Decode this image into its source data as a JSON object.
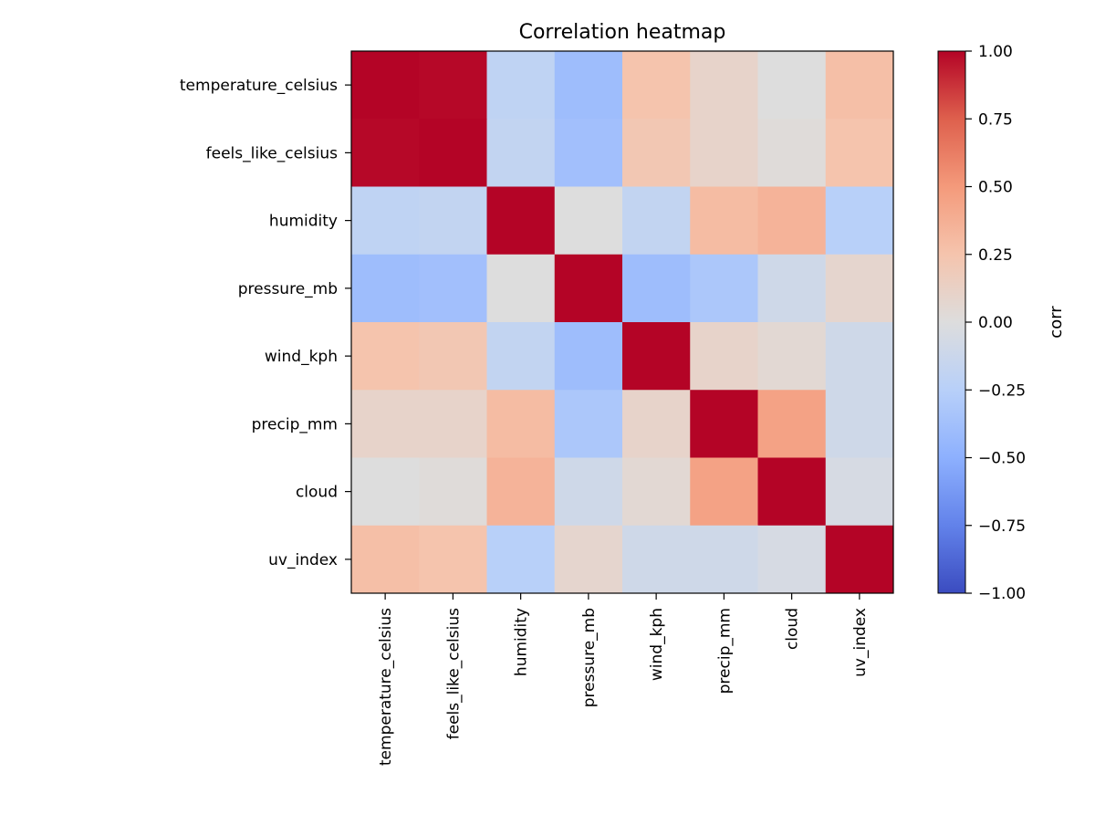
{
  "chart_data": {
    "type": "heatmap",
    "title": "Correlation heatmap",
    "xlabel": "",
    "ylabel": "",
    "x_categories": [
      "temperature_celsius",
      "feels_like_celsius",
      "humidity",
      "pressure_mb",
      "wind_kph",
      "precip_mm",
      "cloud",
      "uv_index"
    ],
    "y_categories": [
      "temperature_celsius",
      "feels_like_celsius",
      "humidity",
      "pressure_mb",
      "wind_kph",
      "precip_mm",
      "cloud",
      "uv_index"
    ],
    "values": [
      [
        1.0,
        0.99,
        -0.2,
        -0.4,
        0.25,
        0.1,
        0.0,
        0.28
      ],
      [
        0.99,
        1.0,
        -0.18,
        -0.38,
        0.22,
        0.1,
        0.02,
        0.25
      ],
      [
        -0.2,
        -0.18,
        1.0,
        0.0,
        -0.18,
        0.3,
        0.35,
        -0.25
      ],
      [
        -0.4,
        -0.38,
        0.0,
        1.0,
        -0.4,
        -0.32,
        -0.1,
        0.08
      ],
      [
        0.25,
        0.22,
        -0.18,
        -0.4,
        1.0,
        0.1,
        0.05,
        -0.1
      ],
      [
        0.1,
        0.1,
        0.3,
        -0.32,
        0.1,
        1.0,
        0.45,
        -0.1
      ],
      [
        0.0,
        0.02,
        0.35,
        -0.1,
        0.05,
        0.45,
        1.0,
        -0.05
      ],
      [
        0.28,
        0.25,
        -0.25,
        0.08,
        -0.1,
        -0.1,
        -0.05,
        1.0
      ]
    ],
    "vmin": -1.0,
    "vmax": 1.0,
    "colormap": "coolwarm",
    "colorbar": {
      "label": "corr",
      "ticks": [
        1.0,
        0.75,
        0.5,
        0.25,
        0.0,
        -0.25,
        -0.5,
        -0.75,
        -1.0
      ],
      "tick_labels": [
        "1.00",
        "0.75",
        "0.50",
        "0.25",
        "0.00",
        "−0.25",
        "−0.50",
        "−0.75",
        "−1.00"
      ]
    }
  }
}
